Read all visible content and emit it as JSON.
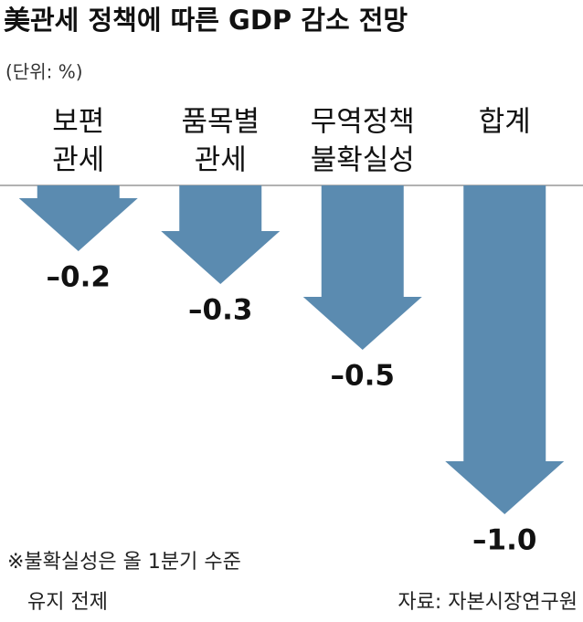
{
  "chart_data": {
    "type": "arrow-bar",
    "title": "美관세 정책에 따른 GDP 감소 전망",
    "unit": "(단위: %)",
    "categories": [
      [
        "보편",
        "관세"
      ],
      [
        "품목별",
        "관세"
      ],
      [
        "무역정책",
        "불확실성"
      ],
      [
        "합계"
      ]
    ],
    "values": [
      -0.2,
      -0.3,
      -0.5,
      -1.0
    ],
    "value_labels": [
      "–0.2",
      "–0.3",
      "–0.5",
      "–1.0"
    ],
    "color": "#5b8bb0",
    "note": [
      "※불확실성은 올 1분기 수준",
      "유지 전제"
    ],
    "source": "자료: 자본시장연구원"
  }
}
